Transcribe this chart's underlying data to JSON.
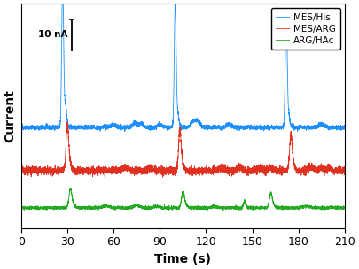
{
  "title": "",
  "xlabel": "Time (s)",
  "ylabel": "Current",
  "xlim": [
    0,
    210
  ],
  "x_ticks": [
    0,
    30,
    60,
    90,
    120,
    150,
    180,
    210
  ],
  "legend_labels": [
    "MES/His",
    "MES/ARG",
    "ARG/HAc"
  ],
  "colors": [
    "#1e8fff",
    "#e03020",
    "#22aa22"
  ],
  "scale_bar_text": "10 nA",
  "background_color": "#ffffff",
  "blue_baseline": 6.0,
  "red_baseline": 3.2,
  "green_baseline": 0.8,
  "ylim": [
    -0.5,
    14.0
  ]
}
